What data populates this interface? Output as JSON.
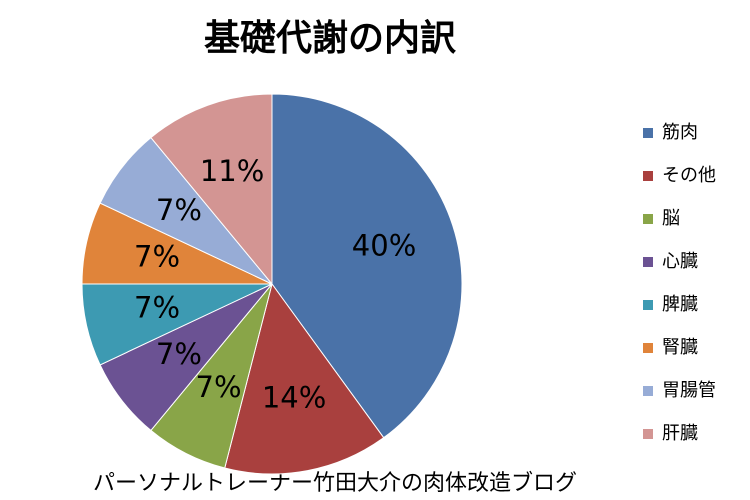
{
  "chart_data": {
    "type": "pie",
    "title": "基礎代謝の内訳",
    "categories": [
      "筋肉",
      "その他",
      "脳",
      "心臓",
      "脾臓",
      "腎臓",
      "胃腸管",
      "肝臓"
    ],
    "values": [
      40,
      14,
      7,
      7,
      7,
      7,
      7,
      11
    ],
    "value_labels": [
      "40%",
      "14%",
      "7%",
      "7%",
      "7%",
      "7%",
      "7%",
      "11%"
    ],
    "colors": [
      "#4a72a8",
      "#a9403e",
      "#89a548",
      "#6b5293",
      "#3d9ab2",
      "#e0843a",
      "#97acd6",
      "#d39593"
    ],
    "legend": "right",
    "caption": "パーソナルトレーナー竹田大介の肉体改造ブログ"
  }
}
